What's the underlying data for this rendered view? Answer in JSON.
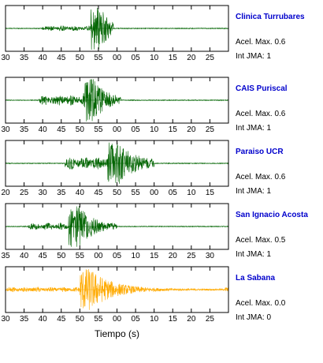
{
  "chart_data": {
    "type": "line",
    "xlabel": "Tiempo (s)",
    "panels": [
      {
        "station": "Clinica Turrubares",
        "accel_label": "Acel. Max. 0.6",
        "jma_label": "Int JMA: 1",
        "color": "#006400",
        "ticks": [
          "30",
          "35",
          "40",
          "45",
          "50",
          "55",
          "00",
          "05",
          "10",
          "15",
          "20",
          "25"
        ],
        "tick_start": 30,
        "signal": {
          "onset": 40,
          "peak": 54.5,
          "peak_amp": 1.0,
          "pre_amp": 0.12,
          "coda_decay": 2.8,
          "end": 59
        }
      },
      {
        "station": "CAIS Puriscal",
        "accel_label": "Acel. Max. 0.6",
        "jma_label": "Int JMA: 1",
        "color": "#006400",
        "ticks": [
          "30",
          "35",
          "40",
          "45",
          "50",
          "55",
          "00",
          "05",
          "10",
          "15",
          "20",
          "25"
        ],
        "tick_start": 30,
        "signal": {
          "onset": 39,
          "peak": 52.5,
          "peak_amp": 1.0,
          "pre_amp": 0.25,
          "coda_decay": 3.5,
          "end": 61
        }
      },
      {
        "station": "Paraiso UCR",
        "accel_label": "Acel. Max. 0.6",
        "jma_label": "Int JMA: 1",
        "color": "#006400",
        "ticks": [
          "20",
          "25",
          "30",
          "35",
          "40",
          "45",
          "50",
          "55",
          "00",
          "05",
          "10",
          "15"
        ],
        "tick_start": 20,
        "signal": {
          "onset": 36,
          "peak": 49,
          "peak_amp": 1.0,
          "pre_amp": 0.3,
          "coda_decay": 4.5,
          "end": 60
        }
      },
      {
        "station": "San Ignacio Acosta",
        "accel_label": "Acel. Max. 0.5",
        "jma_label": "Int JMA: 1",
        "color": "#006400",
        "ticks": [
          "35",
          "40",
          "45",
          "50",
          "55",
          "00",
          "05",
          "10",
          "15",
          "20",
          "25",
          "30"
        ],
        "tick_start": 30,
        "signal": {
          "onset": 36,
          "peak": 48.5,
          "peak_amp": 1.0,
          "pre_amp": 0.18,
          "coda_decay": 4.0,
          "end": 60
        }
      },
      {
        "station": "La Sabana",
        "accel_label": "Acel. Max. 0.0",
        "jma_label": "Int JMA: 0",
        "color": "#ffaa00",
        "ticks": [
          "30",
          "35",
          "40",
          "45",
          "50",
          "55",
          "00",
          "05",
          "10",
          "15",
          "20",
          "25"
        ],
        "tick_start": 30,
        "signal": {
          "onset": 30,
          "peak": 51.5,
          "peak_amp": 1.0,
          "pre_amp": 0.12,
          "coda_decay": 6.0,
          "end": 89,
          "noise": 0.12
        }
      }
    ]
  }
}
